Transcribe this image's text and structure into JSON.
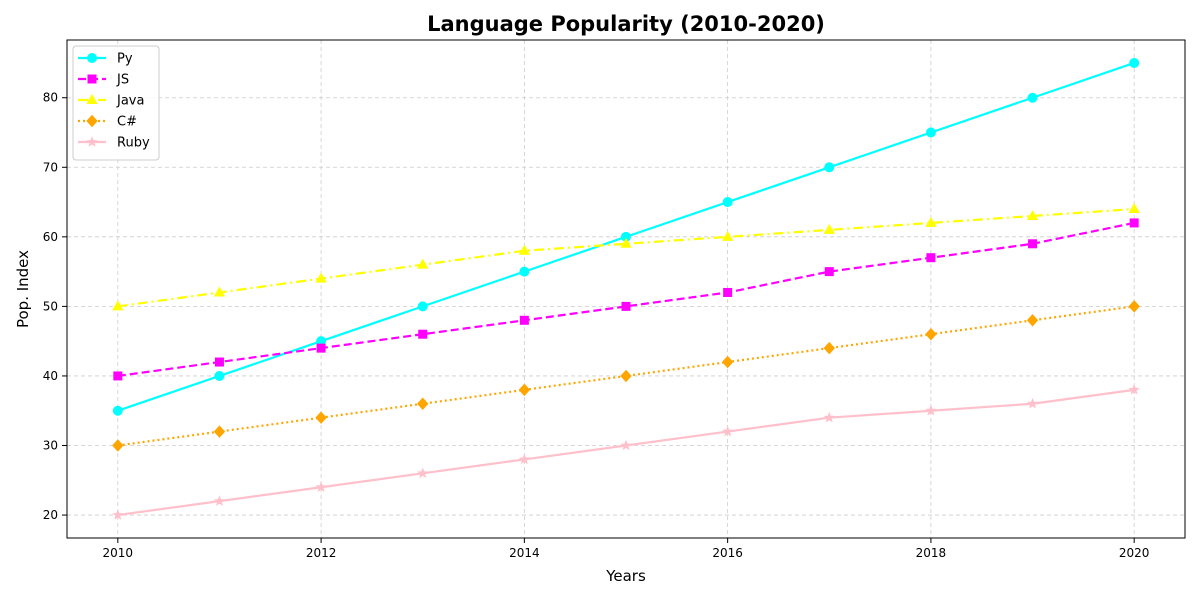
{
  "chart_data": {
    "type": "line",
    "title": "Language Popularity (2010-2020)",
    "xlabel": "Years",
    "ylabel": "Pop. Index",
    "x": [
      2010,
      2011,
      2012,
      2013,
      2014,
      2015,
      2016,
      2017,
      2018,
      2019,
      2020
    ],
    "xlim": [
      2009.5,
      2020.5
    ],
    "ylim": [
      16.7,
      88.3
    ],
    "xticks": [
      2010,
      2012,
      2014,
      2016,
      2018,
      2020
    ],
    "yticks": [
      20,
      30,
      40,
      50,
      60,
      70,
      80
    ],
    "grid": true,
    "legend_position": "top-left",
    "series": [
      {
        "name": "Py",
        "color": "#00ffff",
        "dash": "solid",
        "marker": "circle",
        "values": [
          35,
          40,
          45,
          50,
          55,
          60,
          65,
          70,
          75,
          80,
          85
        ]
      },
      {
        "name": "JS",
        "color": "#ff00ff",
        "dash": "dashed",
        "marker": "square",
        "values": [
          40,
          42,
          44,
          46,
          48,
          50,
          52,
          55,
          57,
          59,
          62
        ]
      },
      {
        "name": "Java",
        "color": "#ffff00",
        "dash": "dashdot",
        "marker": "triangle",
        "values": [
          50,
          52,
          54,
          56,
          58,
          59,
          60,
          61,
          62,
          63,
          64
        ]
      },
      {
        "name": "C#",
        "color": "#ffa500",
        "dash": "dotted",
        "marker": "diamond",
        "values": [
          30,
          32,
          34,
          36,
          38,
          40,
          42,
          44,
          46,
          48,
          50
        ]
      },
      {
        "name": "Ruby",
        "color": "#ffc0cb",
        "dash": "solid",
        "marker": "star",
        "values": [
          20,
          22,
          24,
          26,
          28,
          30,
          32,
          34,
          35,
          36,
          38
        ]
      }
    ]
  }
}
